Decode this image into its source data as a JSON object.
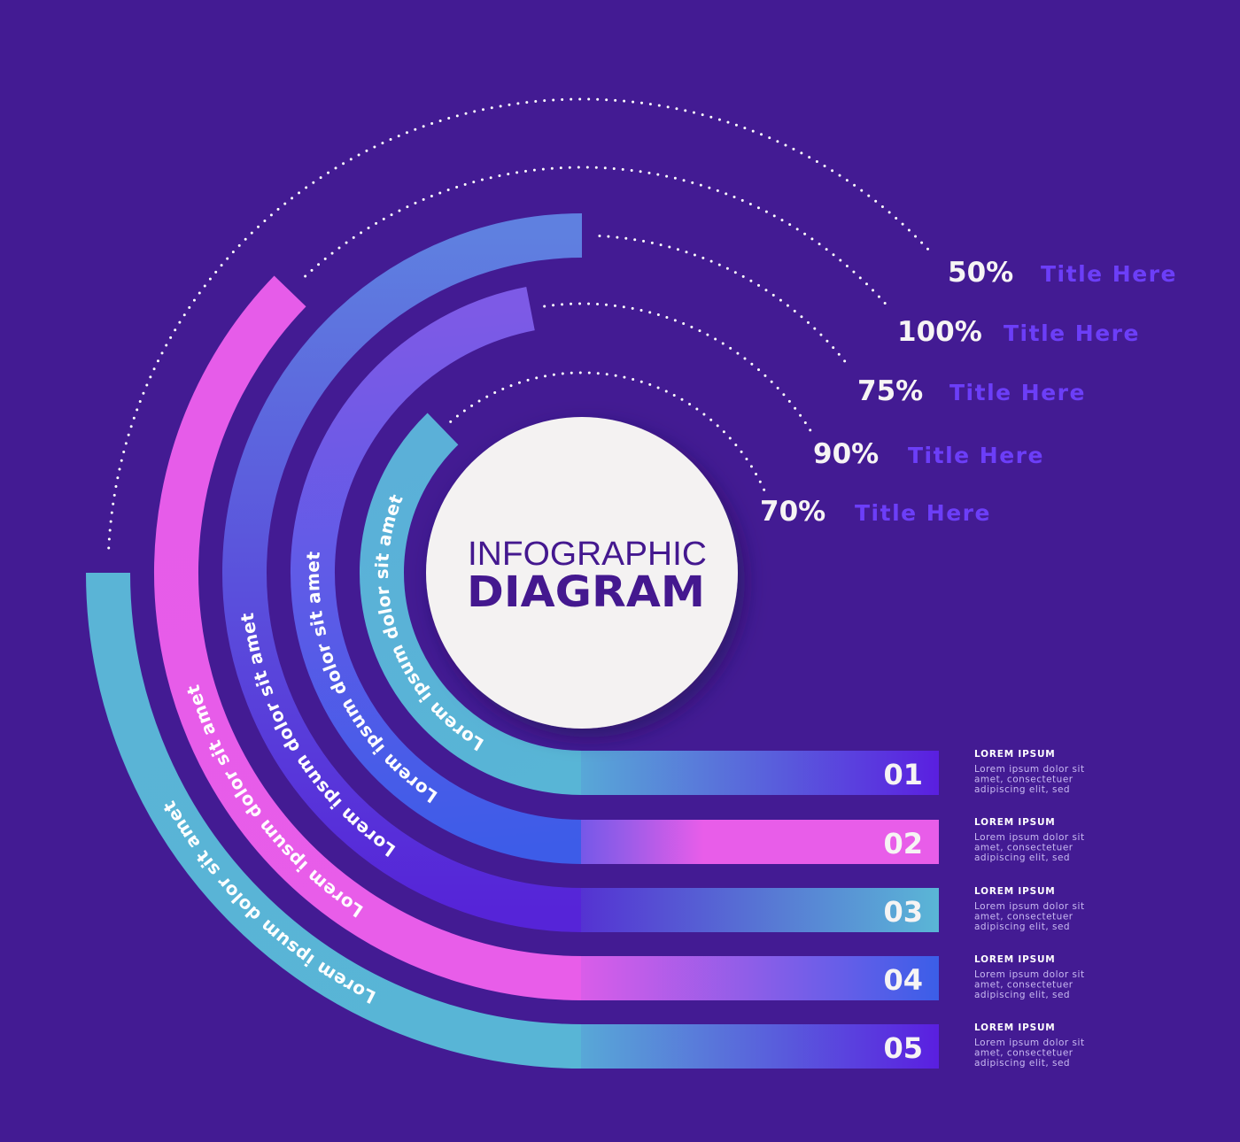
{
  "center": {
    "title_top": "INFOGRAPHIC",
    "title_bottom": "DIAGRAM",
    "text_color": "#44188f",
    "fill_color": "#f4f2f2"
  },
  "colors": {
    "background": "#431b93",
    "title_label": "#6c3ef8",
    "dotted_line": "#ffffff"
  },
  "rings": [
    {
      "number": "01",
      "percent": "70%",
      "title": "Title Here",
      "arc_text": "Lorem ipsum dolor sit amet",
      "heading": "LOREM IPSUM",
      "body": [
        "Lorem ipsum dolor sit",
        "amet, consectetuer",
        "adipiscing elit, sed"
      ],
      "arc_colors": [
        "#58b5d6",
        "#5bb0d8"
      ],
      "bar_colors": [
        "#58b5d6",
        "#5a1fe0"
      ]
    },
    {
      "number": "02",
      "percent": "90%",
      "title": "Title Here",
      "arc_text": "Lorem ipsum dolor sit amet",
      "heading": "LOREM IPSUM",
      "body": [
        "Lorem ipsum dolor sit",
        "amet, consectetuer",
        "adipiscing elit, sed"
      ],
      "arc_colors": [
        "#3d5ce8",
        "#7d5ae6"
      ],
      "bar_colors": [
        "#5a55e8",
        "#e85de9"
      ]
    },
    {
      "number": "03",
      "percent": "75%",
      "title": "Title Here",
      "arc_text": "Lorem ipsum dolor sit amet",
      "heading": "LOREM IPSUM",
      "body": [
        "Lorem ipsum dolor sit",
        "amet, consectetuer",
        "adipiscing elit, sed"
      ],
      "arc_colors": [
        "#5624d8",
        "#5f80e0"
      ],
      "bar_colors": [
        "#5426d2",
        "#5ab6d6"
      ]
    },
    {
      "number": "04",
      "percent": "100%",
      "title": "Title Here",
      "arc_text": "Lorem ipsum dolor sit amet",
      "heading": "LOREM IPSUM",
      "body": [
        "Lorem ipsum dolor sit",
        "amet, consectetuer",
        "adipiscing elit, sed"
      ],
      "arc_colors": [
        "#e85de9",
        "#e65ce9"
      ],
      "bar_colors": [
        "#e85de9",
        "#3b5ee8"
      ]
    },
    {
      "number": "05",
      "percent": "50%",
      "title": "Title Here",
      "arc_text": "Lorem ipsum dolor sit amet",
      "heading": "LOREM IPSUM",
      "body": [
        "Lorem ipsum dolor sit",
        "amet, consectetuer",
        "adipiscing elit, sed"
      ],
      "arc_colors": [
        "#58b5d6",
        "#5ab4d6"
      ],
      "bar_colors": [
        "#58b5d6",
        "#5a1fe0"
      ]
    }
  ]
}
